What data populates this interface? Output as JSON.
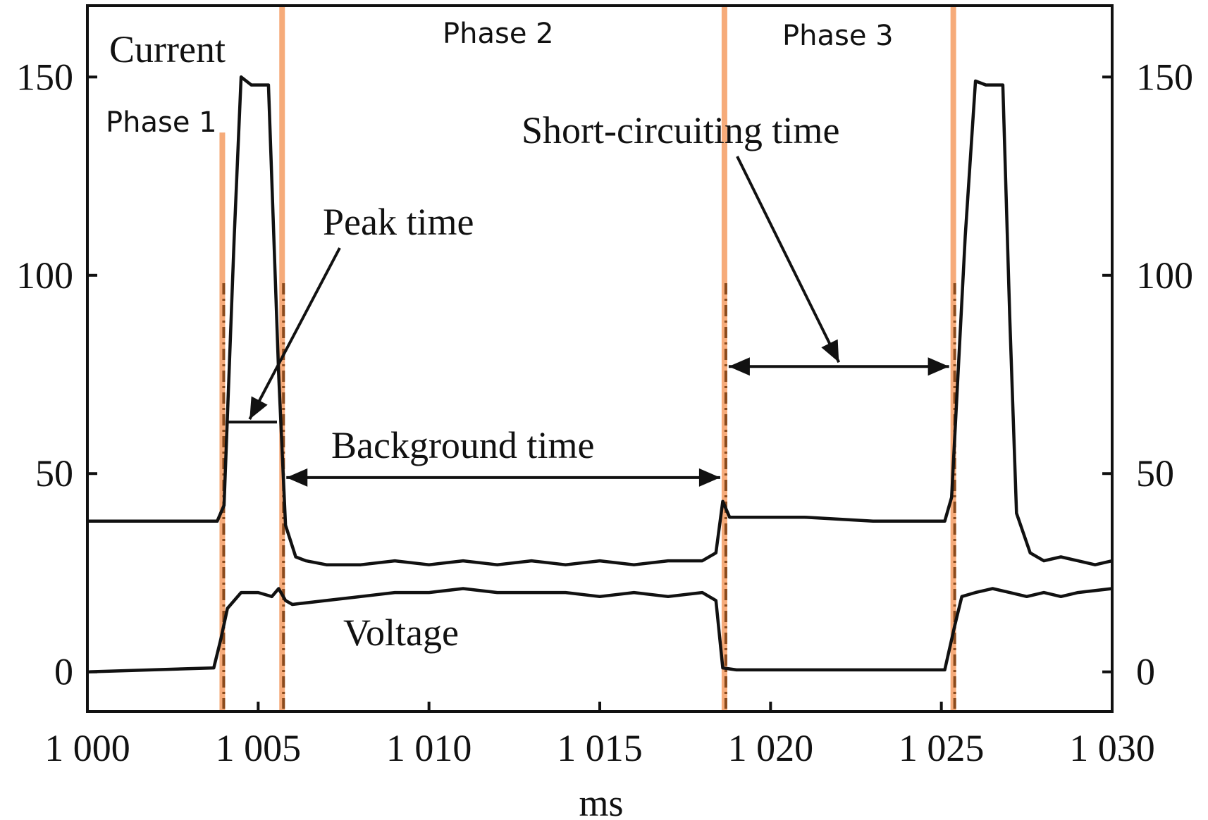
{
  "chart_data": {
    "type": "line",
    "title": "",
    "xlabel": "ms",
    "ylabel": "",
    "xlim": [
      1000,
      1030
    ],
    "ylim": [
      -10,
      168
    ],
    "x_ticks": [
      {
        "value": 1000,
        "label": "1 000"
      },
      {
        "value": 1005,
        "label": "1 005"
      },
      {
        "value": 1010,
        "label": "1 010"
      },
      {
        "value": 1015,
        "label": "1 015"
      },
      {
        "value": 1020,
        "label": "1 020"
      },
      {
        "value": 1025,
        "label": "1 025"
      },
      {
        "value": 1030,
        "label": "1 030"
      }
    ],
    "y_ticks": [
      {
        "value": 0,
        "label": "0"
      },
      {
        "value": 50,
        "label": "50"
      },
      {
        "value": 100,
        "label": "100"
      },
      {
        "value": 150,
        "label": "150"
      }
    ],
    "right_axis_ticks": [
      {
        "value": 0,
        "label": "0"
      },
      {
        "value": 50,
        "label": "50"
      },
      {
        "value": 100,
        "label": "100"
      },
      {
        "value": 150,
        "label": "150"
      }
    ],
    "grid": false,
    "series": [
      {
        "name": "Current",
        "color": "#111111",
        "x": [
          1000,
          1003.8,
          1004.0,
          1004.3,
          1004.5,
          1004.8,
          1005.3,
          1005.6,
          1005.8,
          1006.1,
          1006.4,
          1007.0,
          1008.0,
          1009.0,
          1010.0,
          1011.0,
          1012.0,
          1013.0,
          1014.0,
          1015.0,
          1016.0,
          1017.0,
          1018.0,
          1018.4,
          1018.6,
          1018.8,
          1019.5,
          1021.0,
          1023.0,
          1024.5,
          1025.1,
          1025.3,
          1025.7,
          1026.0,
          1026.3,
          1026.8,
          1027.0,
          1027.2,
          1027.6,
          1028.0,
          1028.5,
          1029.0,
          1029.5,
          1030.0
        ],
        "y": [
          38,
          38,
          42,
          110,
          150,
          148,
          148,
          75,
          37,
          29,
          28,
          27,
          27,
          28,
          27,
          28,
          27,
          28,
          27,
          28,
          27,
          28,
          28,
          30,
          43,
          39,
          39,
          39,
          38,
          38,
          38,
          44,
          110,
          149,
          148,
          148,
          90,
          40,
          30,
          28,
          29,
          28,
          27,
          28
        ]
      },
      {
        "name": "Voltage",
        "color": "#111111",
        "x": [
          1000,
          1003.7,
          1003.9,
          1004.1,
          1004.5,
          1005.0,
          1005.4,
          1005.6,
          1005.8,
          1006.0,
          1007.0,
          1008.0,
          1009.0,
          1010.0,
          1011.0,
          1012.0,
          1013.0,
          1014.0,
          1015.0,
          1016.0,
          1017.0,
          1018.0,
          1018.4,
          1018.6,
          1019.0,
          1021.0,
          1023.0,
          1025.1,
          1025.4,
          1025.6,
          1026.0,
          1026.5,
          1027.0,
          1027.5,
          1028.0,
          1028.5,
          1029.0,
          1030.0
        ],
        "y": [
          0,
          1,
          8,
          16,
          20,
          20,
          19,
          21,
          18,
          17,
          18,
          19,
          20,
          20,
          21,
          20,
          20,
          20,
          19,
          20,
          19,
          20,
          18,
          1,
          0.5,
          0.5,
          0.5,
          0.5,
          12,
          19,
          20,
          21,
          20,
          19,
          20,
          19,
          20,
          21
        ]
      }
    ],
    "phase_boundaries": [
      1003.95,
      1005.7,
      1018.65,
      1025.35
    ],
    "boundary_color": "#f5a26b",
    "dashed_marker_color": "#8b4a1c",
    "annotations": {
      "current_label": "Current",
      "voltage_label": "Voltage",
      "phase1": "Phase 1",
      "phase2": "Phase 2",
      "phase3": "Phase 3",
      "peak_time": "Peak time",
      "background_time": "Background time",
      "short_circuiting_time": "Short-circuiting time"
    }
  }
}
